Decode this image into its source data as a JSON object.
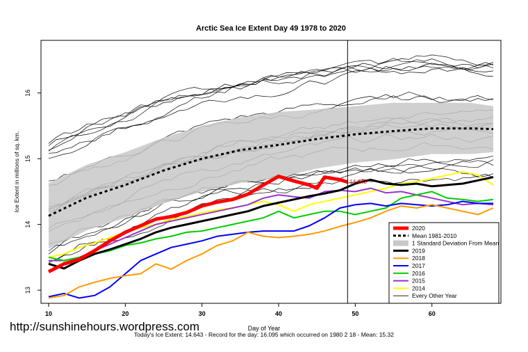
{
  "chart_data": {
    "type": "line",
    "title": "Arctic Sea Ice Extent Day 49 1978 to 2020",
    "xlabel": "Day of Year",
    "ylabel": "Ice Extent in millions of sq. km.",
    "xlim": [
      9,
      69
    ],
    "ylim": [
      12.8,
      16.8
    ],
    "xticks": [
      10,
      20,
      30,
      40,
      50,
      60
    ],
    "yticks": [
      13,
      14,
      15,
      16
    ],
    "current_day": 49,
    "current_value_label": "14.643",
    "legend_position": "bottom-right",
    "mean_1981_2010": {
      "x": [
        10,
        15,
        20,
        25,
        30,
        35,
        40,
        45,
        50,
        55,
        60,
        65,
        68
      ],
      "values": [
        14.13,
        14.41,
        14.6,
        14.82,
        15.0,
        15.13,
        15.21,
        15.3,
        15.37,
        15.42,
        15.46,
        15.46,
        15.45
      ]
    },
    "std_band": {
      "x": [
        10,
        15,
        20,
        25,
        30,
        35,
        40,
        45,
        50,
        55,
        60,
        65,
        68
      ],
      "upper": [
        14.63,
        14.91,
        15.1,
        15.32,
        15.5,
        15.63,
        15.71,
        15.75,
        15.8,
        15.85,
        15.85,
        15.85,
        15.8
      ],
      "lower": [
        13.63,
        13.91,
        14.1,
        14.32,
        14.5,
        14.63,
        14.71,
        14.85,
        14.94,
        14.99,
        15.07,
        15.07,
        15.1
      ]
    },
    "series": [
      {
        "name": "2020",
        "color": "#ff0000",
        "width": 5,
        "x": [
          10,
          12,
          14,
          16,
          18,
          20,
          22,
          24,
          26,
          28,
          30,
          32,
          34,
          36,
          38,
          40,
          42,
          44,
          45,
          46,
          48,
          49
        ],
        "values": [
          13.28,
          13.4,
          13.47,
          13.6,
          13.75,
          13.88,
          13.98,
          14.08,
          14.12,
          14.18,
          14.28,
          14.34,
          14.38,
          14.46,
          14.6,
          14.73,
          14.66,
          14.6,
          14.55,
          14.72,
          14.68,
          14.643
        ]
      },
      {
        "name": "2019",
        "color": "#000000",
        "width": 3,
        "x": [
          10,
          12,
          14,
          16,
          18,
          20,
          22,
          24,
          26,
          28,
          30,
          32,
          34,
          36,
          38,
          40,
          42,
          44,
          46,
          48,
          50,
          52,
          54,
          56,
          58,
          60,
          62,
          64,
          66,
          68
        ],
        "values": [
          13.4,
          13.33,
          13.45,
          13.55,
          13.62,
          13.7,
          13.78,
          13.88,
          13.95,
          14.0,
          14.05,
          14.1,
          14.15,
          14.2,
          14.28,
          14.33,
          14.38,
          14.43,
          14.47,
          14.52,
          14.62,
          14.68,
          14.62,
          14.6,
          14.62,
          14.58,
          14.6,
          14.62,
          14.67,
          14.72
        ]
      },
      {
        "name": "2018",
        "color": "#ff9900",
        "width": 2,
        "x": [
          10,
          12,
          14,
          16,
          18,
          20,
          22,
          24,
          26,
          28,
          30,
          32,
          34,
          36,
          38,
          40,
          42,
          44,
          46,
          48,
          50,
          52,
          54,
          56,
          58,
          60,
          62,
          64,
          66,
          68
        ],
        "values": [
          12.88,
          12.92,
          13.05,
          13.12,
          13.18,
          13.22,
          13.25,
          13.4,
          13.32,
          13.45,
          13.55,
          13.68,
          13.75,
          13.88,
          13.82,
          13.8,
          13.82,
          13.85,
          13.9,
          13.97,
          14.03,
          14.1,
          14.2,
          14.28,
          14.25,
          14.3,
          14.25,
          14.2,
          14.15,
          14.25
        ]
      },
      {
        "name": "2017",
        "color": "#0000ff",
        "width": 2,
        "x": [
          10,
          12,
          14,
          16,
          18,
          20,
          22,
          24,
          26,
          28,
          30,
          32,
          34,
          36,
          38,
          40,
          42,
          44,
          46,
          48,
          50,
          52,
          54,
          56,
          58,
          60,
          62,
          64,
          66,
          68
        ],
        "values": [
          12.9,
          12.95,
          12.88,
          12.92,
          13.05,
          13.25,
          13.45,
          13.55,
          13.65,
          13.7,
          13.75,
          13.82,
          13.85,
          13.88,
          13.9,
          13.9,
          13.9,
          13.98,
          14.1,
          14.25,
          14.3,
          14.32,
          14.28,
          14.32,
          14.3,
          14.28,
          14.3,
          14.35,
          14.32,
          14.32
        ]
      },
      {
        "name": "2016",
        "color": "#00cc00",
        "width": 2,
        "x": [
          10,
          12,
          14,
          16,
          18,
          20,
          22,
          24,
          26,
          28,
          30,
          32,
          34,
          36,
          38,
          40,
          42,
          44,
          46,
          48,
          50,
          52,
          54,
          56,
          58,
          60,
          62,
          64,
          66,
          68
        ],
        "values": [
          13.5,
          13.45,
          13.5,
          13.55,
          13.6,
          13.68,
          13.72,
          13.78,
          13.82,
          13.88,
          13.9,
          13.95,
          14.0,
          14.05,
          14.1,
          14.2,
          14.1,
          14.15,
          14.2,
          14.2,
          14.15,
          14.2,
          14.25,
          14.4,
          14.45,
          14.5,
          14.4,
          14.38,
          14.35,
          14.38
        ]
      },
      {
        "name": "2015",
        "color": "#9933cc",
        "width": 2,
        "x": [
          10,
          12,
          14,
          16,
          18,
          20,
          22,
          24,
          26,
          28,
          30,
          32,
          34,
          36,
          38,
          40,
          42,
          44,
          46,
          48,
          50,
          52,
          54,
          56,
          58,
          60,
          62,
          64,
          66,
          68
        ],
        "values": [
          13.45,
          13.45,
          13.5,
          13.6,
          13.7,
          13.8,
          13.9,
          14.0,
          14.05,
          14.1,
          14.15,
          14.2,
          14.25,
          14.3,
          14.4,
          14.45,
          14.42,
          14.4,
          14.5,
          14.52,
          14.5,
          14.55,
          14.48,
          14.5,
          14.45,
          14.4,
          14.35,
          14.3,
          14.32,
          14.3
        ]
      },
      {
        "name": "2014",
        "color": "#ffff00",
        "width": 2,
        "x": [
          10,
          12,
          14,
          16,
          18,
          20,
          22,
          24,
          26,
          28,
          30,
          32,
          34,
          36,
          38,
          40,
          42,
          44,
          46,
          48,
          50,
          52,
          54,
          56,
          58,
          60,
          62,
          64,
          66,
          68
        ],
        "values": [
          13.5,
          13.55,
          13.65,
          13.72,
          13.8,
          13.88,
          13.95,
          14.0,
          14.08,
          14.12,
          14.18,
          14.22,
          14.25,
          14.3,
          14.35,
          14.3,
          14.2,
          14.3,
          14.35,
          14.4,
          14.45,
          14.5,
          14.55,
          14.62,
          14.65,
          14.7,
          14.75,
          14.8,
          14.75,
          14.6
        ]
      }
    ],
    "background_lines_count": 20,
    "legend": [
      "2020",
      "Mean 1981-2010",
      "1 Standard Deviation From Mean",
      "2019",
      "2018",
      "2017",
      "2016",
      "2015",
      "2014",
      "Every Other Year"
    ]
  },
  "watermark": "http://sunshinehours.wordpress.com",
  "footer": "Today's Ice Extent: 14.643  - Record for the day: 16.095 which occurred on 1980 2 18  - Mean: 15.32"
}
